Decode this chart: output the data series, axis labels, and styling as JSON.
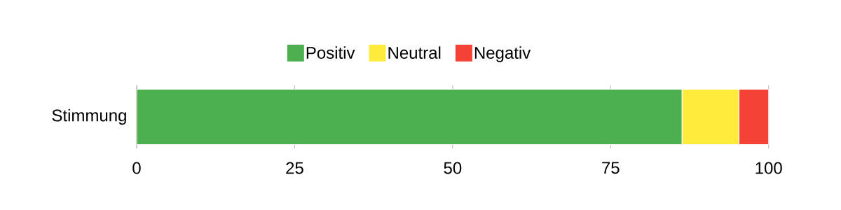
{
  "chart_data": {
    "type": "bar",
    "orientation": "horizontal",
    "stacked": true,
    "categories": [
      "Stimmung"
    ],
    "series": [
      {
        "name": "Positiv",
        "color": "#4caf50",
        "values": [
          86.3
        ]
      },
      {
        "name": "Neutral",
        "color": "#ffeb3b",
        "values": [
          9
        ]
      },
      {
        "name": "Negativ",
        "color": "#f44336",
        "values": [
          4.7
        ]
      }
    ],
    "xlim": [
      0,
      100
    ],
    "xticks": [
      0,
      25,
      50,
      75,
      100
    ],
    "grid": "x",
    "legend": "top"
  }
}
